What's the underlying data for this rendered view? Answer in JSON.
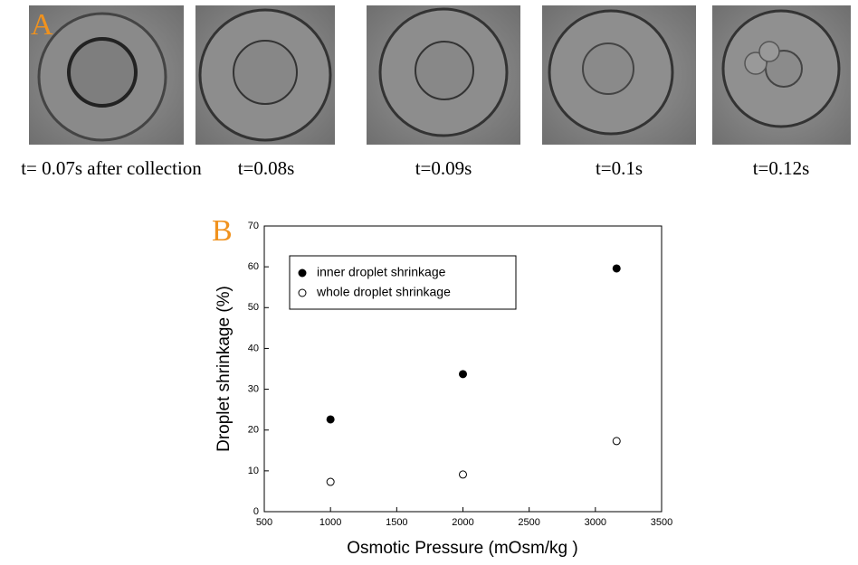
{
  "panel_a": {
    "label": "A",
    "captions": [
      "t= 0.07s after collection",
      "t=0.08s",
      "t=0.09s",
      "t=0.1s",
      "t=0.12s"
    ]
  },
  "chart_data": {
    "type": "scatter",
    "panel_label": "B",
    "x_label": "Osmotic Pressure (mOsm/kg )",
    "y_label": "Droplet shrinkage (%)",
    "xlim": [
      500,
      3500
    ],
    "xticks": [
      500,
      1000,
      1500,
      2000,
      2500,
      3000,
      3500
    ],
    "ylim": [
      0,
      70
    ],
    "yticks": [
      0,
      10,
      20,
      30,
      40,
      50,
      60,
      70
    ],
    "legend": "top-left",
    "series": [
      {
        "name": "inner droplet shrinkage",
        "color": "#000000",
        "marker_fill": "#000000",
        "x": [
          1000,
          2000,
          3160
        ],
        "values": [
          22.6,
          33.7,
          59.6
        ]
      },
      {
        "name": "whole droplet shrinkage",
        "color": "#000000",
        "marker_fill": "#ffffff",
        "x": [
          1000,
          2000,
          3160
        ],
        "values": [
          7.3,
          9.1,
          17.3
        ]
      }
    ]
  }
}
